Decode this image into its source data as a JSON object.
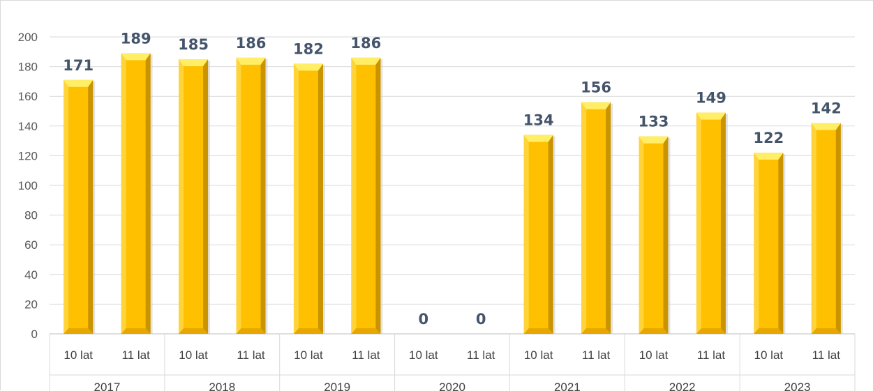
{
  "chart_data": {
    "type": "bar",
    "title": "",
    "xlabel": "",
    "ylabel": "",
    "ylim": [
      0,
      200
    ],
    "yticks": [
      0,
      20,
      40,
      60,
      80,
      100,
      120,
      140,
      160,
      180,
      200
    ],
    "grid": true,
    "legend": "none",
    "groups": [
      "2017",
      "2018",
      "2019",
      "2020",
      "2021",
      "2022",
      "2023"
    ],
    "subcategories": [
      "10 lat",
      "11 lat"
    ],
    "values": [
      [
        171,
        189
      ],
      [
        185,
        186
      ],
      [
        182,
        186
      ],
      [
        0,
        0
      ],
      [
        134,
        156
      ],
      [
        133,
        149
      ],
      [
        122,
        142
      ]
    ],
    "colors": {
      "bar_front": "#ffc000",
      "bar_light": "#ffd43b",
      "bar_top": "#ffee66",
      "bar_dark": "#c99400",
      "data_label": "#44546a",
      "grid": "#d9d9d9"
    }
  }
}
